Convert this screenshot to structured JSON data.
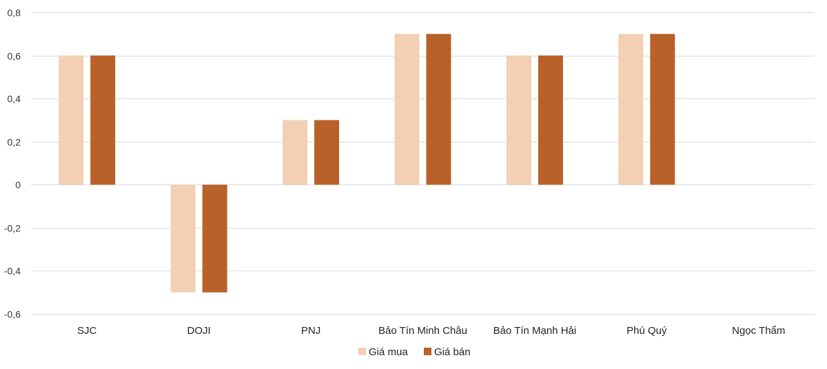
{
  "chart_data": {
    "type": "bar",
    "title": "",
    "xlabel": "",
    "ylabel": "",
    "categories": [
      "SJC",
      "DOJI",
      "PNJ",
      "Bảo Tín Minh Châu",
      "Bảo Tín Mạnh Hải",
      "Phú Quý",
      "Ngọc Thẩm"
    ],
    "series": [
      {
        "name": "Giá mua",
        "color": "#f3cfb3",
        "values": [
          0.6,
          -0.5,
          0.3,
          0.7,
          0.6,
          0.7,
          0
        ]
      },
      {
        "name": "Giá bán",
        "color": "#b8612a",
        "values": [
          0.6,
          -0.5,
          0.3,
          0.7,
          0.6,
          0.7,
          0
        ]
      }
    ],
    "ylim": [
      -0.6,
      0.8
    ],
    "yticks": [
      {
        "value": 0.8,
        "label": "0,8"
      },
      {
        "value": 0.6,
        "label": "0,6"
      },
      {
        "value": 0.4,
        "label": "0,4"
      },
      {
        "value": 0.2,
        "label": "0,2"
      },
      {
        "value": 0,
        "label": "0"
      },
      {
        "value": -0.2,
        "label": "-0,2"
      },
      {
        "value": -0.4,
        "label": "-0,4"
      },
      {
        "value": -0.6,
        "label": "-0,6"
      }
    ],
    "grid": true,
    "legend_position": "bottom-center"
  }
}
